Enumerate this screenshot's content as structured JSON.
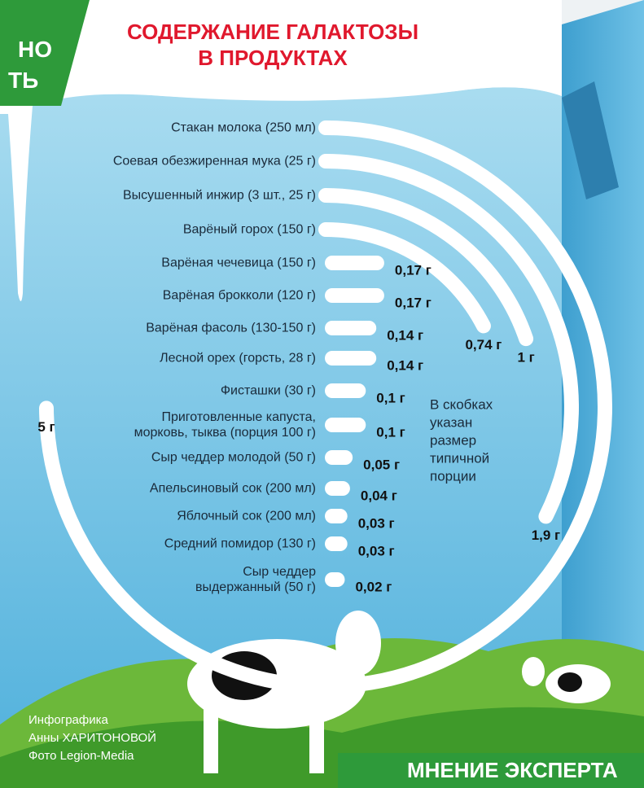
{
  "corner_badge": [
    "НО",
    "ТЬ"
  ],
  "chart_data": {
    "type": "radial-bar",
    "title": [
      "СОДЕРЖАНИЕ ГАЛАКТОЗЫ",
      "В ПРОДУКТАХ"
    ],
    "categories": [
      "Стакан молока (250 мл)",
      "Соевая обезжиренная мука (25 г)",
      "Высушенный инжир (3 шт., 25 г)",
      "Варёный горох (150 г)",
      "Варёная чечевица (150 г)",
      "Варёная брокколи (120 г)",
      "Варёная фасоль (130-150 г)",
      "Лесной орех (горсть, 28 г)",
      "Фисташки (30 г)",
      "Приготовленные капуста,\nморковь, тыква (порция 100 г)",
      "Сыр чеддер молодой (50 г)",
      "Апельсиновый сок (200 мл)",
      "Яблочный сок (200 мл)",
      "Средний помидор (130 г)",
      "Сыр чеддер\nвыдержанный (50 г)"
    ],
    "values": [
      5,
      1.9,
      1,
      0.74,
      0.17,
      0.17,
      0.14,
      0.14,
      0.1,
      0.1,
      0.05,
      0.04,
      0.03,
      0.03,
      0.02
    ],
    "value_labels": [
      "5 г",
      "1,9 г",
      "1 г",
      "0,74 г",
      "0,17 г",
      "0,17 г",
      "0,14 г",
      "0,14 г",
      "0,1 г",
      "0,1 г",
      "0,05 г",
      "0,04 г",
      "0,03 г",
      "0,03 г",
      "0,02 г"
    ],
    "color": "#ffffff",
    "note": [
      "В скобках",
      "указан",
      "размер",
      "типичной",
      "порции"
    ]
  },
  "credits": [
    "Инфографика",
    "Анны ХАРИТОНОВОЙ",
    "Фото Legion-Media"
  ],
  "logo": "МНЕНИЕ ЭКСПЕРТА"
}
